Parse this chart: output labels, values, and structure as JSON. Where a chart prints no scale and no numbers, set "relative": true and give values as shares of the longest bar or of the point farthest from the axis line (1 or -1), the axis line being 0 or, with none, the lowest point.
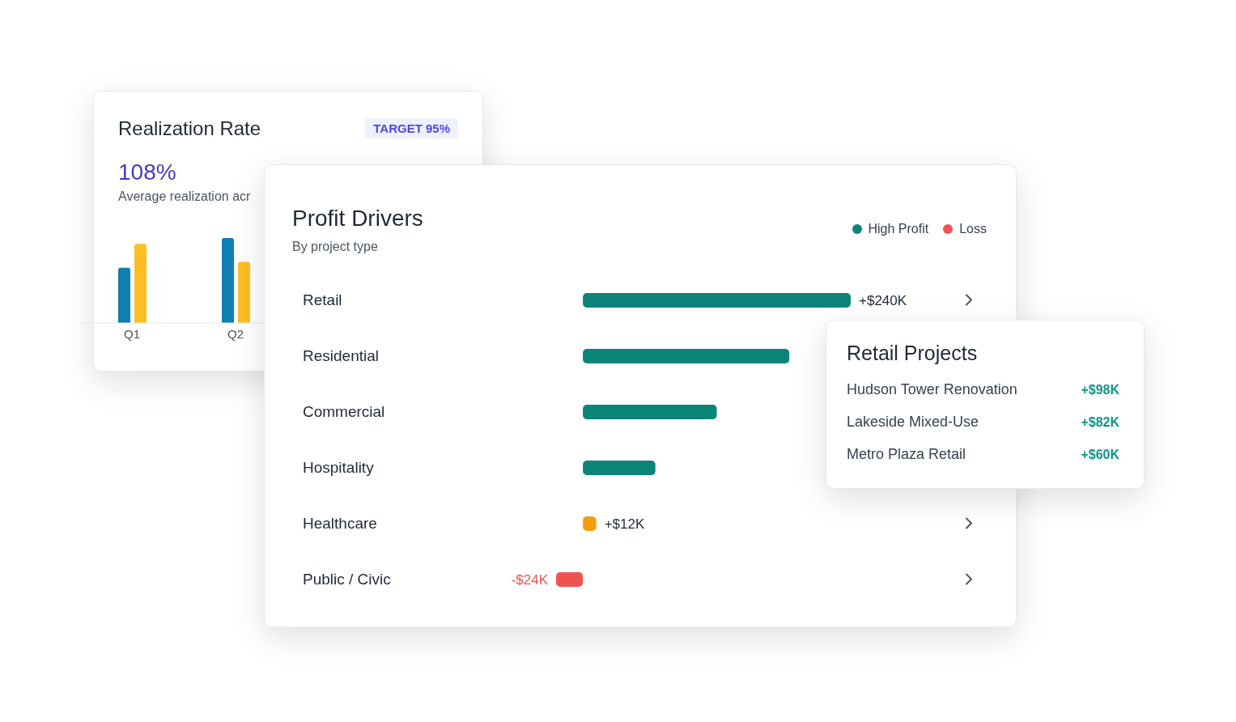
{
  "chart_data": [
    {
      "type": "bar",
      "title": "Realization Rate",
      "subtitle": "Average realization acr",
      "annotations": [
        "TARGET 95%",
        "108%"
      ],
      "categories": [
        "Q1",
        "Q2"
      ],
      "relative": true,
      "series": [
        {
          "color": "#0e7fb0",
          "values": [
            0.65,
            1
          ]
        },
        {
          "color": "#fbbf24",
          "values": [
            0.93,
            0.72
          ]
        }
      ]
    },
    {
      "type": "bar",
      "orientation": "horizontal",
      "stacked": true,
      "title": "Profit Drivers",
      "subtitle": "By project type",
      "legend": "top right",
      "categories": [
        "Retail",
        "Residential",
        "Commercial",
        "Hospitality",
        "Healthcare",
        "Public / Civic"
      ],
      "series": [
        {
          "name": "High Profit",
          "color": "#0b8577",
          "values": [
            240,
            185,
            120,
            65,
            null,
            null
          ],
          "value_labels": [
            "+$240K",
            null,
            null,
            null,
            null,
            null
          ]
        },
        {
          "color": "#f59e0b",
          "values": [
            null,
            null,
            null,
            null,
            12,
            null
          ],
          "value_labels": [
            null,
            null,
            null,
            null,
            "+$12K",
            null
          ]
        },
        {
          "name": "Loss",
          "color": "#ef5350",
          "values": [
            null,
            null,
            null,
            null,
            null,
            -24
          ],
          "value_labels": [
            null,
            null,
            null,
            null,
            null,
            "-$24K"
          ]
        }
      ]
    },
    {
      "type": "other",
      "title": "Retail Projects",
      "annotations": [
        "Hudson Tower Renovation",
        "+$98K",
        "Lakeside Mixed-Use",
        "+$82K",
        "Metro Plaza Retail",
        "+$60K"
      ]
    }
  ]
}
